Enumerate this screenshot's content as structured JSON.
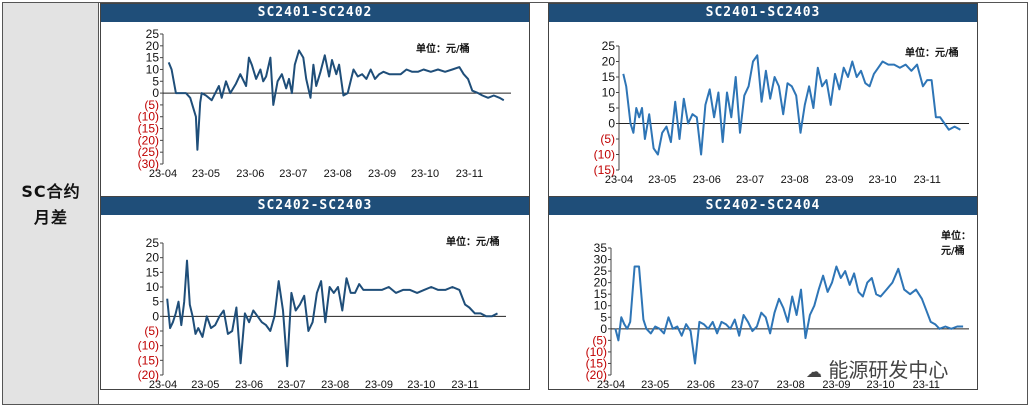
{
  "row_label": [
    "SC合约",
    "月差"
  ],
  "watermark": "能源研发中心",
  "colors": {
    "header_bg": "#1f4e79",
    "line": "#2e75b6",
    "negative": "#c00000",
    "left_bg": "#e3e3e3"
  },
  "chart_data": [
    {
      "type": "line",
      "title": "SC2401-SC2402",
      "unit": "单位：元/桶",
      "ylim": [
        -30,
        25
      ],
      "yticks": [
        25,
        20,
        15,
        10,
        5,
        0,
        -5,
        -10,
        -15,
        -20,
        -25,
        -30
      ],
      "ytick_labels": [
        "25",
        "20",
        "15",
        "10",
        "5",
        "0",
        "(5)",
        "(10)",
        "(15)",
        "(20)",
        "(25)",
        "(30)"
      ],
      "x_start": "2023-04-01",
      "x_end": "2023-11-30",
      "xtick_labels": [
        "23-04",
        "23-05",
        "23-06",
        "23-07",
        "23-08",
        "23-09",
        "23-10",
        "23-11"
      ],
      "series": [
        {
          "x": [
            "2023-04-05",
            "2023-04-07",
            "2023-04-10",
            "2023-04-17",
            "2023-04-20",
            "2023-04-24",
            "2023-04-25",
            "2023-04-27",
            "2023-04-28",
            "2023-05-01",
            "2023-05-05",
            "2023-05-10",
            "2023-05-12",
            "2023-05-15",
            "2023-05-18",
            "2023-05-22",
            "2023-05-25",
            "2023-05-29",
            "2023-05-31",
            "2023-06-02",
            "2023-06-05",
            "2023-06-08",
            "2023-06-10",
            "2023-06-12",
            "2023-06-15",
            "2023-06-17",
            "2023-06-20",
            "2023-06-23",
            "2023-06-26",
            "2023-06-28",
            "2023-06-30",
            "2023-07-02",
            "2023-07-05",
            "2023-07-08",
            "2023-07-10",
            "2023-07-13",
            "2023-07-15",
            "2023-07-17",
            "2023-07-20",
            "2023-07-23",
            "2023-07-26",
            "2023-07-28",
            "2023-07-31",
            "2023-08-02",
            "2023-08-05",
            "2023-08-08",
            "2023-08-10",
            "2023-08-12",
            "2023-08-15",
            "2023-08-18",
            "2023-08-21",
            "2023-08-24",
            "2023-08-27",
            "2023-08-30",
            "2023-09-02",
            "2023-09-06",
            "2023-09-10",
            "2023-09-14",
            "2023-09-18",
            "2023-09-22",
            "2023-09-26",
            "2023-09-30",
            "2023-10-05",
            "2023-10-10",
            "2023-10-15",
            "2023-10-20",
            "2023-10-25",
            "2023-10-28",
            "2023-10-31",
            "2023-11-03",
            "2023-11-07",
            "2023-11-10",
            "2023-11-14",
            "2023-11-18",
            "2023-11-22",
            "2023-11-25"
          ],
          "y": [
            13,
            10,
            0,
            0,
            -2,
            -10,
            -24,
            -4,
            0,
            -1,
            -3,
            3,
            -2,
            5,
            0,
            4,
            8,
            3,
            15,
            12,
            6,
            10,
            5,
            7,
            15,
            -5,
            5,
            8,
            2,
            6,
            0,
            12,
            18,
            15,
            6,
            -2,
            12,
            3,
            9,
            16,
            7,
            14,
            8,
            12,
            -1,
            0,
            5,
            10,
            7,
            8,
            6,
            10,
            6,
            8,
            9,
            8,
            8,
            8,
            10,
            9,
            9,
            10,
            9,
            10,
            9,
            10,
            11,
            8,
            6,
            1,
            0,
            -1,
            -2,
            -1,
            -2,
            -3
          ]
        }
      ]
    },
    {
      "type": "line",
      "title": "SC2401-SC2403",
      "unit": "单位：元/桶",
      "ylim": [
        -15,
        25
      ],
      "yticks": [
        25,
        20,
        15,
        10,
        5,
        0,
        -5,
        -10,
        -15
      ],
      "ytick_labels": [
        "25",
        "20",
        "15",
        "10",
        "5",
        "0",
        "(5)",
        "(10)",
        "(15)"
      ],
      "x_start": "2023-04-01",
      "x_end": "2023-11-30",
      "xtick_labels": [
        "23-04",
        "23-05",
        "23-06",
        "23-07",
        "23-08",
        "23-09",
        "23-10",
        "23-11"
      ],
      "series": [
        {
          "x": [
            "2023-04-04",
            "2023-04-06",
            "2023-04-09",
            "2023-04-11",
            "2023-04-13",
            "2023-04-15",
            "2023-04-17",
            "2023-04-19",
            "2023-04-22",
            "2023-04-25",
            "2023-04-28",
            "2023-05-01",
            "2023-05-04",
            "2023-05-07",
            "2023-05-10",
            "2023-05-13",
            "2023-05-16",
            "2023-05-19",
            "2023-05-22",
            "2023-05-25",
            "2023-05-28",
            "2023-05-31",
            "2023-06-03",
            "2023-06-06",
            "2023-06-09",
            "2023-06-12",
            "2023-06-15",
            "2023-06-18",
            "2023-06-21",
            "2023-06-24",
            "2023-06-27",
            "2023-06-30",
            "2023-07-03",
            "2023-07-06",
            "2023-07-09",
            "2023-07-12",
            "2023-07-15",
            "2023-07-18",
            "2023-07-21",
            "2023-07-24",
            "2023-07-27",
            "2023-07-30",
            "2023-08-02",
            "2023-08-05",
            "2023-08-08",
            "2023-08-11",
            "2023-08-14",
            "2023-08-17",
            "2023-08-20",
            "2023-08-23",
            "2023-08-26",
            "2023-08-29",
            "2023-09-01",
            "2023-09-04",
            "2023-09-07",
            "2023-09-10",
            "2023-09-13",
            "2023-09-16",
            "2023-09-19",
            "2023-09-22",
            "2023-09-25",
            "2023-09-28",
            "2023-10-01",
            "2023-10-05",
            "2023-10-09",
            "2023-10-13",
            "2023-10-17",
            "2023-10-21",
            "2023-10-25",
            "2023-10-29",
            "2023-11-01",
            "2023-11-04",
            "2023-11-07",
            "2023-11-10",
            "2023-11-13",
            "2023-11-16",
            "2023-11-20",
            "2023-11-24"
          ],
          "y": [
            16,
            12,
            0,
            -3,
            5,
            2,
            5,
            -5,
            3,
            -8,
            -10,
            -3,
            -1,
            -6,
            7,
            -5,
            8,
            0,
            3,
            2,
            -10,
            6,
            11,
            2,
            10,
            -6,
            10,
            2,
            15,
            -3,
            9,
            12,
            20,
            22,
            7,
            17,
            8,
            15,
            12,
            3,
            13,
            12,
            9,
            -3,
            6,
            12,
            5,
            18,
            12,
            14,
            6,
            16,
            11,
            18,
            15,
            20,
            15,
            17,
            13,
            12,
            16,
            18,
            20,
            19,
            19,
            18,
            19,
            17,
            19,
            12,
            14,
            14,
            2,
            2,
            0,
            -2,
            -1,
            -2
          ]
        }
      ]
    },
    {
      "type": "line",
      "title": "SC2402-SC2403",
      "unit": "单位：元/桶",
      "ylim": [
        -20,
        25
      ],
      "yticks": [
        25,
        20,
        15,
        10,
        5,
        0,
        -5,
        -10,
        -15,
        -20
      ],
      "ytick_labels": [
        "25",
        "20",
        "15",
        "10",
        "5",
        "0",
        "(5)",
        "(10)",
        "(15)",
        "(20)"
      ],
      "x_start": "2023-04-01",
      "x_end": "2023-11-30",
      "xtick_labels": [
        "23-04",
        "23-05",
        "23-06",
        "23-07",
        "23-08",
        "23-09",
        "23-10",
        "23-11"
      ],
      "series": [
        {
          "x": [
            "2023-04-04",
            "2023-04-06",
            "2023-04-08",
            "2023-04-10",
            "2023-04-12",
            "2023-04-14",
            "2023-04-16",
            "2023-04-18",
            "2023-04-20",
            "2023-04-22",
            "2023-04-24",
            "2023-04-26",
            "2023-04-29",
            "2023-05-02",
            "2023-05-05",
            "2023-05-08",
            "2023-05-11",
            "2023-05-14",
            "2023-05-17",
            "2023-05-20",
            "2023-05-23",
            "2023-05-26",
            "2023-05-29",
            "2023-06-01",
            "2023-06-04",
            "2023-06-07",
            "2023-06-10",
            "2023-06-13",
            "2023-06-16",
            "2023-06-19",
            "2023-06-22",
            "2023-06-25",
            "2023-06-28",
            "2023-07-01",
            "2023-07-04",
            "2023-07-07",
            "2023-07-10",
            "2023-07-13",
            "2023-07-16",
            "2023-07-19",
            "2023-07-22",
            "2023-07-25",
            "2023-07-28",
            "2023-07-31",
            "2023-08-03",
            "2023-08-06",
            "2023-08-09",
            "2023-08-12",
            "2023-08-15",
            "2023-08-18",
            "2023-08-21",
            "2023-08-24",
            "2023-08-27",
            "2023-08-30",
            "2023-09-03",
            "2023-09-08",
            "2023-09-13",
            "2023-09-18",
            "2023-09-23",
            "2023-09-28",
            "2023-10-03",
            "2023-10-08",
            "2023-10-13",
            "2023-10-18",
            "2023-10-23",
            "2023-10-28",
            "2023-11-01",
            "2023-11-04",
            "2023-11-08",
            "2023-11-12",
            "2023-11-16",
            "2023-11-20",
            "2023-11-24"
          ],
          "y": [
            6,
            -4,
            -2,
            1,
            5,
            -3,
            5,
            19,
            4,
            0,
            -6,
            -4,
            -7,
            0,
            -4,
            -3,
            0,
            2,
            -6,
            -5,
            3,
            -16,
            1,
            -2,
            2,
            0,
            -2,
            -3,
            -5,
            0,
            12,
            2,
            -17,
            8,
            2,
            4,
            7,
            -5,
            -2,
            8,
            12,
            -2,
            10,
            8,
            10,
            2,
            13,
            8,
            8,
            11,
            9,
            9,
            9,
            9,
            9,
            10,
            8,
            9,
            9,
            8,
            9,
            10,
            9,
            9,
            10,
            9,
            4,
            3,
            1,
            1,
            0,
            0,
            1
          ]
        }
      ]
    },
    {
      "type": "line",
      "title": "SC2402-SC2404",
      "unit": "单位：元/桶",
      "ylim": [
        -20,
        35
      ],
      "yticks": [
        35,
        30,
        25,
        20,
        15,
        10,
        5,
        0,
        -5,
        -10,
        -15,
        -20
      ],
      "ytick_labels": [
        "35",
        "30",
        "25",
        "20",
        "15",
        "10",
        "5",
        "0",
        "(5)",
        "(10)",
        "(15)",
        "(20)"
      ],
      "x_start": "2023-04-01",
      "x_end": "2023-11-30",
      "xtick_labels": [
        "23-04",
        "23-05",
        "23-06",
        "23-07",
        "23-08",
        "23-09",
        "23-10",
        "23-11"
      ],
      "series": [
        {
          "x": [
            "2023-04-04",
            "2023-04-06",
            "2023-04-08",
            "2023-04-10",
            "2023-04-12",
            "2023-04-14",
            "2023-04-17",
            "2023-04-20",
            "2023-04-23",
            "2023-04-25",
            "2023-04-28",
            "2023-05-01",
            "2023-05-04",
            "2023-05-07",
            "2023-05-10",
            "2023-05-13",
            "2023-05-16",
            "2023-05-19",
            "2023-05-22",
            "2023-05-25",
            "2023-05-28",
            "2023-05-31",
            "2023-06-03",
            "2023-06-06",
            "2023-06-09",
            "2023-06-12",
            "2023-06-15",
            "2023-06-18",
            "2023-06-21",
            "2023-06-24",
            "2023-06-27",
            "2023-06-30",
            "2023-07-03",
            "2023-07-06",
            "2023-07-09",
            "2023-07-12",
            "2023-07-15",
            "2023-07-18",
            "2023-07-21",
            "2023-07-24",
            "2023-07-27",
            "2023-07-30",
            "2023-08-02",
            "2023-08-05",
            "2023-08-08",
            "2023-08-11",
            "2023-08-14",
            "2023-08-17",
            "2023-08-20",
            "2023-08-23",
            "2023-08-26",
            "2023-08-29",
            "2023-09-01",
            "2023-09-04",
            "2023-09-07",
            "2023-09-10",
            "2023-09-13",
            "2023-09-16",
            "2023-09-19",
            "2023-09-22",
            "2023-09-25",
            "2023-09-28",
            "2023-10-01",
            "2023-10-05",
            "2023-10-09",
            "2023-10-13",
            "2023-10-17",
            "2023-10-21",
            "2023-10-25",
            "2023-10-29",
            "2023-11-01",
            "2023-11-04",
            "2023-11-07",
            "2023-11-10",
            "2023-11-14",
            "2023-11-18",
            "2023-11-22",
            "2023-11-26"
          ],
          "y": [
            0,
            -5,
            5,
            2,
            0,
            3,
            27,
            27,
            4,
            0,
            -2,
            1,
            0,
            -2,
            5,
            0,
            1,
            -3,
            2,
            -1,
            -15,
            3,
            2,
            0,
            3,
            -2,
            3,
            2,
            0,
            4,
            -3,
            6,
            3,
            -1,
            1,
            7,
            5,
            -2,
            7,
            13,
            9,
            3,
            14,
            6,
            17,
            -4,
            6,
            10,
            17,
            23,
            16,
            20,
            27,
            22,
            25,
            19,
            24,
            16,
            14,
            20,
            22,
            15,
            14,
            17,
            20,
            26,
            17,
            15,
            17,
            13,
            8,
            3,
            2,
            0,
            1,
            0,
            1,
            1
          ]
        }
      ]
    }
  ]
}
